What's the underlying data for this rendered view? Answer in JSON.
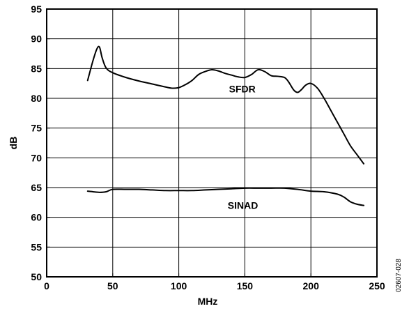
{
  "chart_data": {
    "type": "line",
    "xlabel": "MHz",
    "ylabel": "dB",
    "xlim": [
      0,
      250
    ],
    "ylim": [
      50,
      95
    ],
    "xticks": [
      "0",
      "50",
      "100",
      "150",
      "200",
      "250"
    ],
    "yticks": [
      "50",
      "55",
      "60",
      "65",
      "70",
      "75",
      "80",
      "85",
      "90",
      "95"
    ],
    "grid": true,
    "figure_id": "02607-028",
    "series": [
      {
        "name": "SFDR",
        "x": [
          31,
          35,
          38,
          40,
          42,
          45,
          50,
          60,
          70,
          80,
          90,
          95,
          100,
          105,
          110,
          115,
          120,
          125,
          130,
          135,
          140,
          145,
          150,
          155,
          160,
          165,
          170,
          175,
          180,
          183,
          187,
          190,
          193,
          196,
          200,
          205,
          210,
          215,
          220,
          225,
          230,
          235,
          240
        ],
        "y": [
          83.0,
          86.3,
          88.3,
          88.6,
          86.8,
          85.1,
          84.3,
          83.5,
          82.9,
          82.4,
          81.9,
          81.7,
          81.8,
          82.3,
          83.0,
          84.0,
          84.5,
          84.8,
          84.6,
          84.2,
          83.9,
          83.6,
          83.5,
          84.0,
          84.8,
          84.5,
          83.8,
          83.7,
          83.5,
          82.8,
          81.4,
          81.0,
          81.5,
          82.2,
          82.5,
          81.7,
          80.0,
          78.0,
          76.0,
          74.0,
          72.0,
          70.5,
          69.0
        ]
      },
      {
        "name": "SINAD",
        "x": [
          31,
          35,
          40,
          45,
          50,
          60,
          70,
          80,
          90,
          100,
          110,
          120,
          130,
          140,
          150,
          160,
          170,
          180,
          190,
          200,
          210,
          220,
          225,
          230,
          235,
          240
        ],
        "y": [
          64.4,
          64.3,
          64.2,
          64.3,
          64.7,
          64.7,
          64.7,
          64.6,
          64.5,
          64.5,
          64.5,
          64.6,
          64.7,
          64.8,
          64.9,
          64.9,
          64.9,
          64.9,
          64.7,
          64.4,
          64.3,
          63.9,
          63.4,
          62.6,
          62.2,
          62.0
        ]
      }
    ],
    "annotations": [
      {
        "text": "SFDR",
        "x": 138,
        "y": 81.0
      },
      {
        "text": "SINAD",
        "x": 137,
        "y": 61.4
      }
    ]
  }
}
